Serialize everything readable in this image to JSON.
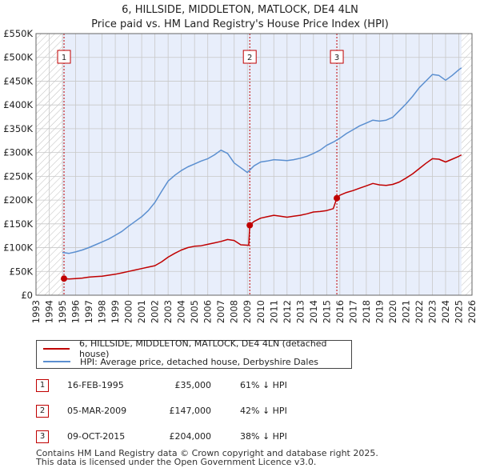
{
  "title_line1": "6, HILLSIDE, MIDDLETON, MATLOCK, DE4 4LN",
  "title_line2": "Price paid vs. HM Land Registry's House Price Index (HPI)",
  "colors": {
    "price_paid": "#c00000",
    "hpi": "#5b8fd0",
    "shade": "#e8eefb",
    "grid": "#c8c8c8"
  },
  "chart_data": {
    "type": "line",
    "title": "Price paid vs. HM Land Registry's House Price Index (HPI)",
    "xlabel": "",
    "ylabel": "",
    "xlim": [
      1993,
      2026
    ],
    "ylim": [
      0,
      550000
    ],
    "y_ticks": [
      0,
      50000,
      100000,
      150000,
      200000,
      250000,
      300000,
      350000,
      400000,
      450000,
      500000,
      550000
    ],
    "y_tick_labels": [
      "£0",
      "£50K",
      "£100K",
      "£150K",
      "£200K",
      "£250K",
      "£300K",
      "£350K",
      "£400K",
      "£450K",
      "£500K",
      "£550K"
    ],
    "x_ticks": [
      1993,
      1994,
      1995,
      1996,
      1997,
      1998,
      1999,
      2000,
      2001,
      2002,
      2003,
      2004,
      2005,
      2006,
      2007,
      2008,
      2009,
      2010,
      2011,
      2012,
      2013,
      2014,
      2015,
      2016,
      2017,
      2018,
      2019,
      2020,
      2021,
      2022,
      2023,
      2024,
      2025,
      2026
    ],
    "x_tick_labels": [
      "1993",
      "1994",
      "1995",
      "1996",
      "1997",
      "1998",
      "1999",
      "2000",
      "2001",
      "2002",
      "2003",
      "2004",
      "2005",
      "2006",
      "2007",
      "2008",
      "2009",
      "2010",
      "2011",
      "2012",
      "2013",
      "2014",
      "2015",
      "2016",
      "2017",
      "2018",
      "2019",
      "2020",
      "2021",
      "2022",
      "2023",
      "2024",
      "2025",
      "2026"
    ],
    "hatched_ranges": [
      [
        1993,
        1995.0
      ],
      [
        2025.2,
        2026
      ]
    ],
    "shaded_range": [
      1995.0,
      2025.2
    ],
    "series": [
      {
        "name": "6, HILLSIDE, MIDDLETON, MATLOCK, DE4 4LN (detached house)",
        "x": [
          1995.12,
          1995.5,
          1996,
          1996.5,
          1997,
          1997.5,
          1998,
          1998.5,
          1999,
          1999.5,
          2000,
          2000.5,
          2001,
          2001.5,
          2002,
          2002.5,
          2003,
          2003.5,
          2004,
          2004.5,
          2005,
          2005.5,
          2006,
          2006.5,
          2007,
          2007.5,
          2008,
          2008.5,
          2009.1,
          2009.18,
          2009.5,
          2010,
          2010.5,
          2011,
          2011.5,
          2012,
          2012.5,
          2013,
          2013.5,
          2014,
          2014.5,
          2015,
          2015.5,
          2015.77,
          2016,
          2016.5,
          2017,
          2017.5,
          2018,
          2018.5,
          2019,
          2019.5,
          2020,
          2020.5,
          2021,
          2021.5,
          2022,
          2022.5,
          2023,
          2023.5,
          2024,
          2024.5,
          2025,
          2025.2
        ],
        "values": [
          35000,
          34000,
          35000,
          36000,
          38000,
          39000,
          40000,
          42000,
          44000,
          47000,
          50000,
          53000,
          56000,
          59000,
          62000,
          70000,
          80000,
          88000,
          95000,
          100000,
          103000,
          104000,
          107000,
          110000,
          113000,
          117000,
          115000,
          106000,
          105000,
          147000,
          155000,
          162000,
          165000,
          168000,
          166000,
          164000,
          166000,
          168000,
          171000,
          175000,
          176000,
          178000,
          182000,
          204000,
          210000,
          216000,
          220000,
          225000,
          230000,
          235000,
          232000,
          231000,
          233000,
          238000,
          246000,
          255000,
          266000,
          277000,
          287000,
          286000,
          280000,
          286000,
          292000,
          295000
        ]
      },
      {
        "name": "HPI: Average price, detached house, Derbyshire Dales",
        "x": [
          1995.0,
          1995.5,
          1996,
          1996.5,
          1997,
          1997.5,
          1998,
          1998.5,
          1999,
          1999.5,
          2000,
          2000.5,
          2001,
          2001.5,
          2002,
          2002.5,
          2003,
          2003.5,
          2004,
          2004.5,
          2005,
          2005.5,
          2006,
          2006.5,
          2007,
          2007.5,
          2008,
          2008.5,
          2009,
          2009.5,
          2010,
          2010.5,
          2011,
          2011.5,
          2012,
          2012.5,
          2013,
          2013.5,
          2014,
          2014.5,
          2015,
          2015.5,
          2016,
          2016.5,
          2017,
          2017.5,
          2018,
          2018.5,
          2019,
          2019.5,
          2020,
          2020.5,
          2021,
          2021.5,
          2022,
          2022.5,
          2023,
          2023.5,
          2024,
          2024.5,
          2025,
          2025.2
        ],
        "values": [
          90000,
          88000,
          91000,
          95000,
          100000,
          106000,
          112000,
          118000,
          126000,
          134000,
          145000,
          155000,
          165000,
          178000,
          195000,
          218000,
          240000,
          252000,
          262000,
          270000,
          276000,
          282000,
          287000,
          295000,
          305000,
          298000,
          278000,
          268000,
          258000,
          272000,
          280000,
          282000,
          285000,
          284000,
          283000,
          285000,
          288000,
          292000,
          298000,
          305000,
          315000,
          322000,
          330000,
          340000,
          348000,
          356000,
          362000,
          368000,
          366000,
          368000,
          374000,
          388000,
          402000,
          418000,
          436000,
          450000,
          464000,
          462000,
          452000,
          462000,
          474000,
          478000
        ]
      }
    ],
    "annotations": [
      {
        "label": "1",
        "x": 1995.12,
        "y": 35000
      },
      {
        "label": "2",
        "x": 2009.18,
        "y": 147000
      },
      {
        "label": "3",
        "x": 2015.77,
        "y": 204000
      }
    ]
  },
  "legend": {
    "items": [
      "6, HILLSIDE, MIDDLETON, MATLOCK, DE4 4LN (detached house)",
      "HPI: Average price, detached house, Derbyshire Dales"
    ]
  },
  "transactions": [
    {
      "num": "1",
      "date": "16-FEB-1995",
      "price": "£35,000",
      "hpi": "61% ↓ HPI"
    },
    {
      "num": "2",
      "date": "05-MAR-2009",
      "price": "£147,000",
      "hpi": "42% ↓ HPI"
    },
    {
      "num": "3",
      "date": "09-OCT-2015",
      "price": "£204,000",
      "hpi": "38% ↓ HPI"
    }
  ],
  "footer_line1": "Contains HM Land Registry data © Crown copyright and database right 2025.",
  "footer_line2": "This data is licensed under the Open Government Licence v3.0."
}
